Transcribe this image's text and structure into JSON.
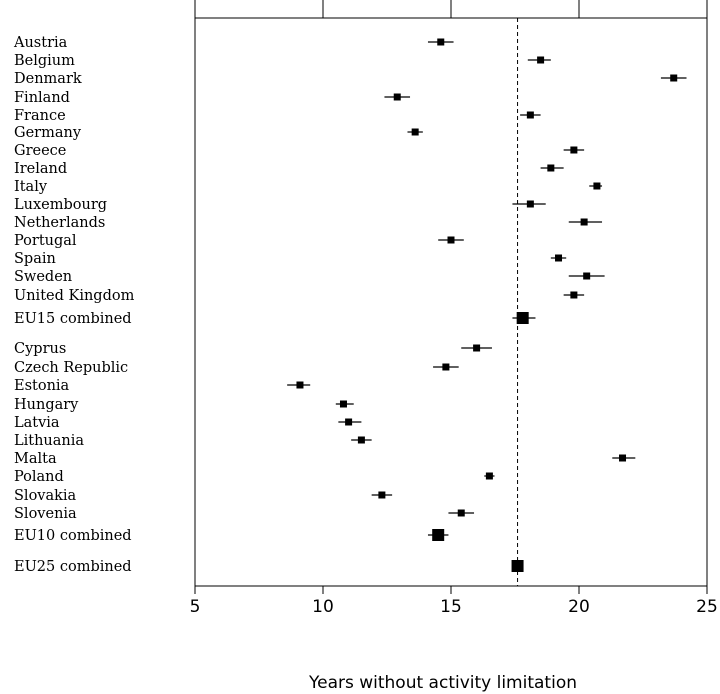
{
  "chart_data": {
    "type": "forest",
    "xlabel": "Years without activity limitation",
    "xlim": [
      5,
      25
    ],
    "xticks": [
      5,
      10,
      15,
      20,
      25
    ],
    "reference_line": 17.6,
    "rows": [
      {
        "label": "Austria",
        "estimate": 14.6,
        "ci": [
          14.1,
          15.1
        ],
        "kind": "country"
      },
      {
        "label": "Belgium",
        "estimate": 18.5,
        "ci": [
          18.0,
          18.9
        ],
        "kind": "country"
      },
      {
        "label": "Denmark",
        "estimate": 23.7,
        "ci": [
          23.2,
          24.2
        ],
        "kind": "country"
      },
      {
        "label": "Finland",
        "estimate": 12.9,
        "ci": [
          12.4,
          13.4
        ],
        "kind": "country"
      },
      {
        "label": "France",
        "estimate": 18.1,
        "ci": [
          17.7,
          18.5
        ],
        "kind": "country"
      },
      {
        "label": "Germany",
        "estimate": 13.6,
        "ci": [
          13.3,
          13.9
        ],
        "kind": "country"
      },
      {
        "label": "Greece",
        "estimate": 19.8,
        "ci": [
          19.4,
          20.2
        ],
        "kind": "country"
      },
      {
        "label": "Ireland",
        "estimate": 18.9,
        "ci": [
          18.5,
          19.4
        ],
        "kind": "country"
      },
      {
        "label": "Italy",
        "estimate": 20.7,
        "ci": [
          20.4,
          20.9
        ],
        "kind": "country"
      },
      {
        "label": "Luxembourg",
        "estimate": 18.1,
        "ci": [
          17.4,
          18.7
        ],
        "kind": "country"
      },
      {
        "label": "Netherlands",
        "estimate": 20.2,
        "ci": [
          19.6,
          20.9
        ],
        "kind": "country"
      },
      {
        "label": "Portugal",
        "estimate": 15.0,
        "ci": [
          14.5,
          15.5
        ],
        "kind": "country"
      },
      {
        "label": "Spain",
        "estimate": 19.2,
        "ci": [
          18.9,
          19.5
        ],
        "kind": "country"
      },
      {
        "label": "Sweden",
        "estimate": 20.3,
        "ci": [
          19.6,
          21.0
        ],
        "kind": "country"
      },
      {
        "label": "United Kingdom",
        "estimate": 19.8,
        "ci": [
          19.4,
          20.2
        ],
        "kind": "country"
      },
      {
        "label": "EU15 combined",
        "estimate": 17.8,
        "ci": [
          17.4,
          18.3
        ],
        "kind": "combined"
      },
      {
        "label": "Cyprus",
        "estimate": 16.0,
        "ci": [
          15.4,
          16.6
        ],
        "kind": "country"
      },
      {
        "label": "Czech Republic",
        "estimate": 14.8,
        "ci": [
          14.3,
          15.3
        ],
        "kind": "country"
      },
      {
        "label": "Estonia",
        "estimate": 9.1,
        "ci": [
          8.6,
          9.5
        ],
        "kind": "country"
      },
      {
        "label": "Hungary",
        "estimate": 10.8,
        "ci": [
          10.5,
          11.2
        ],
        "kind": "country"
      },
      {
        "label": "Latvia",
        "estimate": 11.0,
        "ci": [
          10.6,
          11.5
        ],
        "kind": "country"
      },
      {
        "label": "Lithuania",
        "estimate": 11.5,
        "ci": [
          11.1,
          11.9
        ],
        "kind": "country"
      },
      {
        "label": "Malta",
        "estimate": 21.7,
        "ci": [
          21.3,
          22.2
        ],
        "kind": "country"
      },
      {
        "label": "Poland",
        "estimate": 16.5,
        "ci": [
          16.3,
          16.7
        ],
        "kind": "country"
      },
      {
        "label": "Slovakia",
        "estimate": 12.3,
        "ci": [
          11.9,
          12.7
        ],
        "kind": "country"
      },
      {
        "label": "Slovenia",
        "estimate": 15.4,
        "ci": [
          14.9,
          15.9
        ],
        "kind": "country"
      },
      {
        "label": "EU10 combined",
        "estimate": 14.5,
        "ci": [
          14.1,
          14.9
        ],
        "kind": "combined"
      },
      {
        "label": "EU25 combined",
        "estimate": 17.6,
        "ci": [
          17.4,
          17.8
        ],
        "kind": "combined"
      }
    ]
  }
}
